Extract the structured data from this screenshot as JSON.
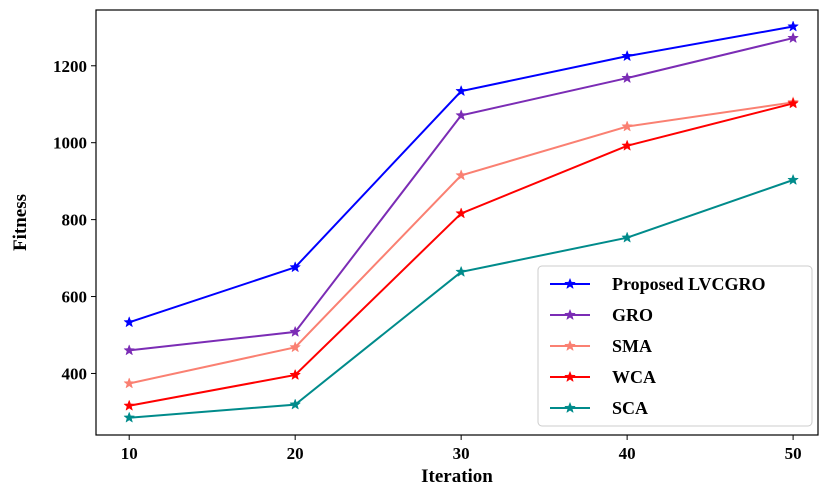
{
  "chart_data": {
    "type": "line",
    "title": "",
    "xlabel": "Iteration",
    "ylabel": "Fitness",
    "x": [
      10,
      20,
      30,
      40,
      50
    ],
    "xticks": [
      "10",
      "20",
      "30",
      "40",
      "50"
    ],
    "yticks": [
      "400",
      "600",
      "800",
      "1000",
      "1200"
    ],
    "xlim": [
      8,
      51.5
    ],
    "ylim": [
      240,
      1345
    ],
    "grid": false,
    "legend_position": "lower-right",
    "marker": "star",
    "series": [
      {
        "name": "Proposed LVCGRO",
        "color": "#0000ff",
        "values": [
          533,
          676,
          1134,
          1225,
          1302
        ]
      },
      {
        "name": "GRO",
        "color": "#7b2cb5",
        "values": [
          460,
          508,
          1071,
          1168,
          1272
        ]
      },
      {
        "name": "SMA",
        "color": "#fa8072",
        "values": [
          374,
          468,
          915,
          1042,
          1105
        ]
      },
      {
        "name": "WCA",
        "color": "#ff0000",
        "values": [
          316,
          396,
          816,
          992,
          1102
        ]
      },
      {
        "name": "SCA",
        "color": "#008b8b",
        "values": [
          285,
          319,
          664,
          753,
          903
        ]
      }
    ]
  }
}
